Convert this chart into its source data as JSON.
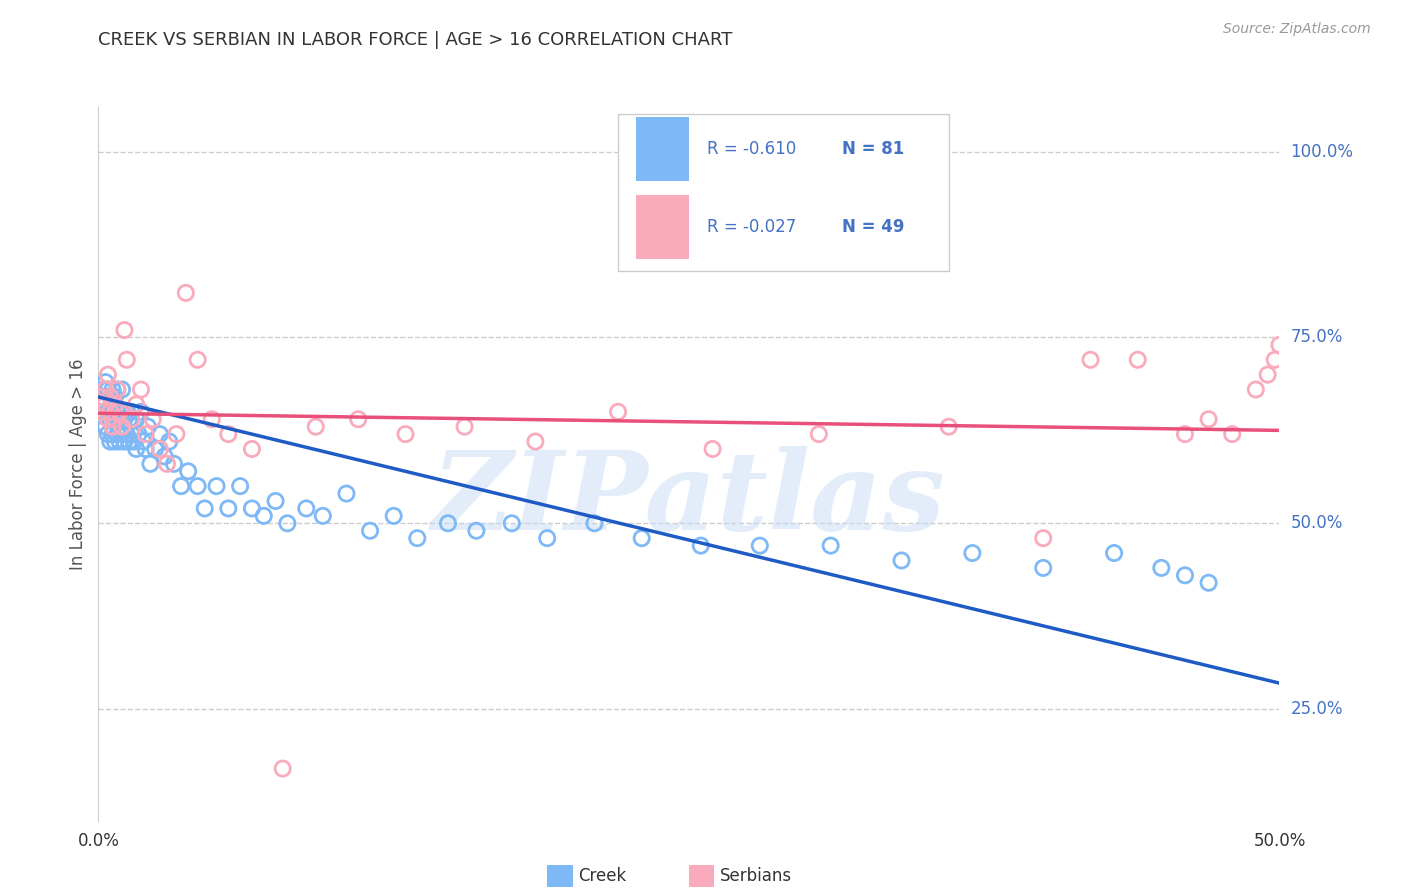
{
  "title": "CREEK VS SERBIAN IN LABOR FORCE | AGE > 16 CORRELATION CHART",
  "source_text": "Source: ZipAtlas.com",
  "ylabel": "In Labor Force | Age > 16",
  "xlim": [
    0.0,
    0.5
  ],
  "ylim": [
    0.1,
    1.06
  ],
  "xticks": [
    0.0,
    0.1,
    0.2,
    0.3,
    0.4,
    0.5
  ],
  "xticklabels": [
    "0.0%",
    "",
    "",
    "",
    "",
    "50.0%"
  ],
  "ytick_vals": [
    0.25,
    0.5,
    0.75,
    1.0
  ],
  "ytick_labels_right": [
    "25.0%",
    "50.0%",
    "75.0%",
    "100.0%"
  ],
  "grid_color": "#cccccc",
  "background_color": "#ffffff",
  "creek_color": "#7EB8F7",
  "serbian_color": "#F9AABB",
  "creek_line_color": "#1F5BC4",
  "serbian_line_color": "#E8507A",
  "legend_R_creek": "R = -0.610",
  "legend_N_creek": "N = 81",
  "legend_R_serbian": "R = -0.027",
  "legend_N_serbian": "N = 49",
  "legend_color": "#4472C4",
  "watermark": "ZIPatlas",
  "creek_scatter_x": [
    0.001,
    0.002,
    0.002,
    0.003,
    0.003,
    0.003,
    0.004,
    0.004,
    0.004,
    0.005,
    0.005,
    0.005,
    0.006,
    0.006,
    0.006,
    0.007,
    0.007,
    0.007,
    0.008,
    0.008,
    0.008,
    0.009,
    0.009,
    0.01,
    0.01,
    0.01,
    0.011,
    0.011,
    0.012,
    0.012,
    0.013,
    0.013,
    0.014,
    0.014,
    0.015,
    0.016,
    0.016,
    0.017,
    0.018,
    0.019,
    0.02,
    0.021,
    0.022,
    0.024,
    0.026,
    0.028,
    0.03,
    0.032,
    0.035,
    0.038,
    0.042,
    0.045,
    0.05,
    0.055,
    0.06,
    0.065,
    0.07,
    0.075,
    0.08,
    0.088,
    0.095,
    0.105,
    0.115,
    0.125,
    0.135,
    0.148,
    0.16,
    0.175,
    0.19,
    0.21,
    0.23,
    0.255,
    0.28,
    0.31,
    0.34,
    0.37,
    0.4,
    0.43,
    0.45,
    0.46,
    0.47
  ],
  "creek_scatter_y": [
    0.67,
    0.65,
    0.68,
    0.63,
    0.66,
    0.69,
    0.62,
    0.65,
    0.68,
    0.61,
    0.64,
    0.67,
    0.62,
    0.65,
    0.68,
    0.61,
    0.64,
    0.67,
    0.62,
    0.65,
    0.68,
    0.61,
    0.64,
    0.62,
    0.65,
    0.68,
    0.61,
    0.64,
    0.62,
    0.65,
    0.61,
    0.64,
    0.62,
    0.65,
    0.61,
    0.64,
    0.6,
    0.62,
    0.65,
    0.61,
    0.6,
    0.63,
    0.58,
    0.6,
    0.62,
    0.59,
    0.61,
    0.58,
    0.55,
    0.57,
    0.55,
    0.52,
    0.55,
    0.52,
    0.55,
    0.52,
    0.51,
    0.53,
    0.5,
    0.52,
    0.51,
    0.54,
    0.49,
    0.51,
    0.48,
    0.5,
    0.49,
    0.5,
    0.48,
    0.5,
    0.48,
    0.47,
    0.47,
    0.47,
    0.45,
    0.46,
    0.44,
    0.46,
    0.44,
    0.43,
    0.42
  ],
  "serbian_scatter_x": [
    0.001,
    0.002,
    0.003,
    0.003,
    0.004,
    0.004,
    0.005,
    0.005,
    0.006,
    0.007,
    0.007,
    0.008,
    0.009,
    0.01,
    0.011,
    0.012,
    0.014,
    0.016,
    0.018,
    0.02,
    0.023,
    0.026,
    0.029,
    0.033,
    0.037,
    0.042,
    0.048,
    0.055,
    0.065,
    0.078,
    0.092,
    0.11,
    0.13,
    0.155,
    0.185,
    0.22,
    0.26,
    0.305,
    0.36,
    0.4,
    0.42,
    0.44,
    0.46,
    0.47,
    0.48,
    0.49,
    0.495,
    0.498,
    0.5
  ],
  "serbian_scatter_y": [
    0.67,
    0.65,
    0.68,
    0.66,
    0.7,
    0.64,
    0.67,
    0.65,
    0.63,
    0.66,
    0.64,
    0.68,
    0.65,
    0.63,
    0.76,
    0.72,
    0.64,
    0.66,
    0.68,
    0.62,
    0.64,
    0.6,
    0.58,
    0.62,
    0.81,
    0.72,
    0.64,
    0.62,
    0.6,
    0.17,
    0.63,
    0.64,
    0.62,
    0.63,
    0.61,
    0.65,
    0.6,
    0.62,
    0.63,
    0.48,
    0.72,
    0.72,
    0.62,
    0.64,
    0.62,
    0.68,
    0.7,
    0.72,
    0.74
  ],
  "creek_trend_x": [
    0.0,
    0.5
  ],
  "creek_trend_y": [
    0.67,
    0.285
  ],
  "serbian_trend_x": [
    0.0,
    0.5
  ],
  "serbian_trend_y": [
    0.648,
    0.625
  ]
}
